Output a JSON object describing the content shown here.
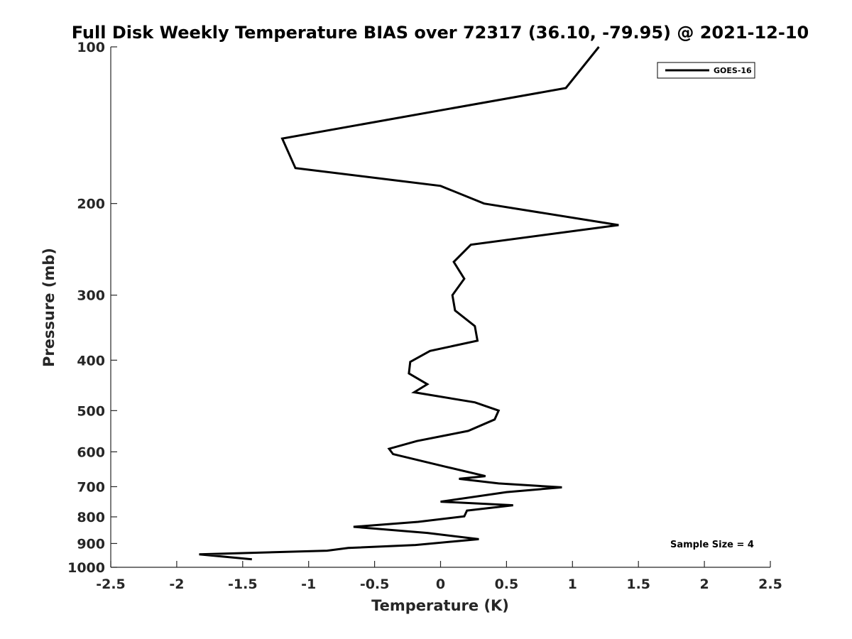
{
  "chart_data": {
    "type": "line",
    "title": "Full Disk Weekly Temperature BIAS over 72317 (36.10, -79.95) @ 2021-12-10",
    "xlabel": "Temperature (K)",
    "ylabel": "Pressure (mb)",
    "xlim": [
      -2.5,
      2.5
    ],
    "ylim": [
      100,
      1000
    ],
    "y_scale": "log",
    "y_reversed": true,
    "xticks": [
      -2.5,
      -2,
      -1.5,
      -1,
      -0.5,
      0,
      0.5,
      1,
      1.5,
      2,
      2.5
    ],
    "xtick_labels": [
      "-2.5",
      "-2",
      "-1.5",
      "-1",
      "-0.5",
      "0",
      "0.5",
      "1",
      "1.5",
      "2",
      "2.5"
    ],
    "yticks": [
      100,
      200,
      300,
      400,
      500,
      600,
      700,
      800,
      900,
      1000
    ],
    "ytick_labels": [
      "100",
      "200",
      "300",
      "400",
      "500",
      "600",
      "700",
      "800",
      "900",
      "1000"
    ],
    "grid": false,
    "legend_position": "top-right",
    "series": [
      {
        "name": "GOES-16",
        "color": "#000000",
        "points": [
          {
            "x": 1.2,
            "p": 100
          },
          {
            "x": 0.95,
            "p": 120
          },
          {
            "x": -1.2,
            "p": 150
          },
          {
            "x": -1.1,
            "p": 171
          },
          {
            "x": 0.0,
            "p": 185
          },
          {
            "x": 0.33,
            "p": 200
          },
          {
            "x": 1.35,
            "p": 220
          },
          {
            "x": 0.23,
            "p": 240
          },
          {
            "x": 0.1,
            "p": 259
          },
          {
            "x": 0.18,
            "p": 279
          },
          {
            "x": 0.09,
            "p": 300
          },
          {
            "x": 0.11,
            "p": 321
          },
          {
            "x": 0.26,
            "p": 344
          },
          {
            "x": 0.28,
            "p": 367
          },
          {
            "x": -0.08,
            "p": 384
          },
          {
            "x": -0.23,
            "p": 403
          },
          {
            "x": -0.24,
            "p": 424
          },
          {
            "x": -0.1,
            "p": 445
          },
          {
            "x": -0.2,
            "p": 461
          },
          {
            "x": 0.26,
            "p": 482
          },
          {
            "x": 0.44,
            "p": 500
          },
          {
            "x": 0.41,
            "p": 520
          },
          {
            "x": 0.21,
            "p": 547
          },
          {
            "x": -0.18,
            "p": 572
          },
          {
            "x": -0.39,
            "p": 592
          },
          {
            "x": -0.36,
            "p": 606
          },
          {
            "x": 0.04,
            "p": 641
          },
          {
            "x": 0.34,
            "p": 668
          },
          {
            "x": 0.14,
            "p": 676
          },
          {
            "x": 0.44,
            "p": 690
          },
          {
            "x": 0.92,
            "p": 702
          },
          {
            "x": 0.5,
            "p": 717
          },
          {
            "x": 0.0,
            "p": 748
          },
          {
            "x": 0.55,
            "p": 760
          },
          {
            "x": 0.2,
            "p": 778
          },
          {
            "x": 0.18,
            "p": 798
          },
          {
            "x": -0.17,
            "p": 818
          },
          {
            "x": -0.66,
            "p": 836
          },
          {
            "x": -0.1,
            "p": 859
          },
          {
            "x": 0.29,
            "p": 883
          },
          {
            "x": -0.19,
            "p": 906
          },
          {
            "x": -0.7,
            "p": 918
          },
          {
            "x": -0.86,
            "p": 929
          },
          {
            "x": -1.83,
            "p": 944
          },
          {
            "x": -1.43,
            "p": 965
          }
        ]
      }
    ],
    "annotation": "Sample Size = 4"
  }
}
